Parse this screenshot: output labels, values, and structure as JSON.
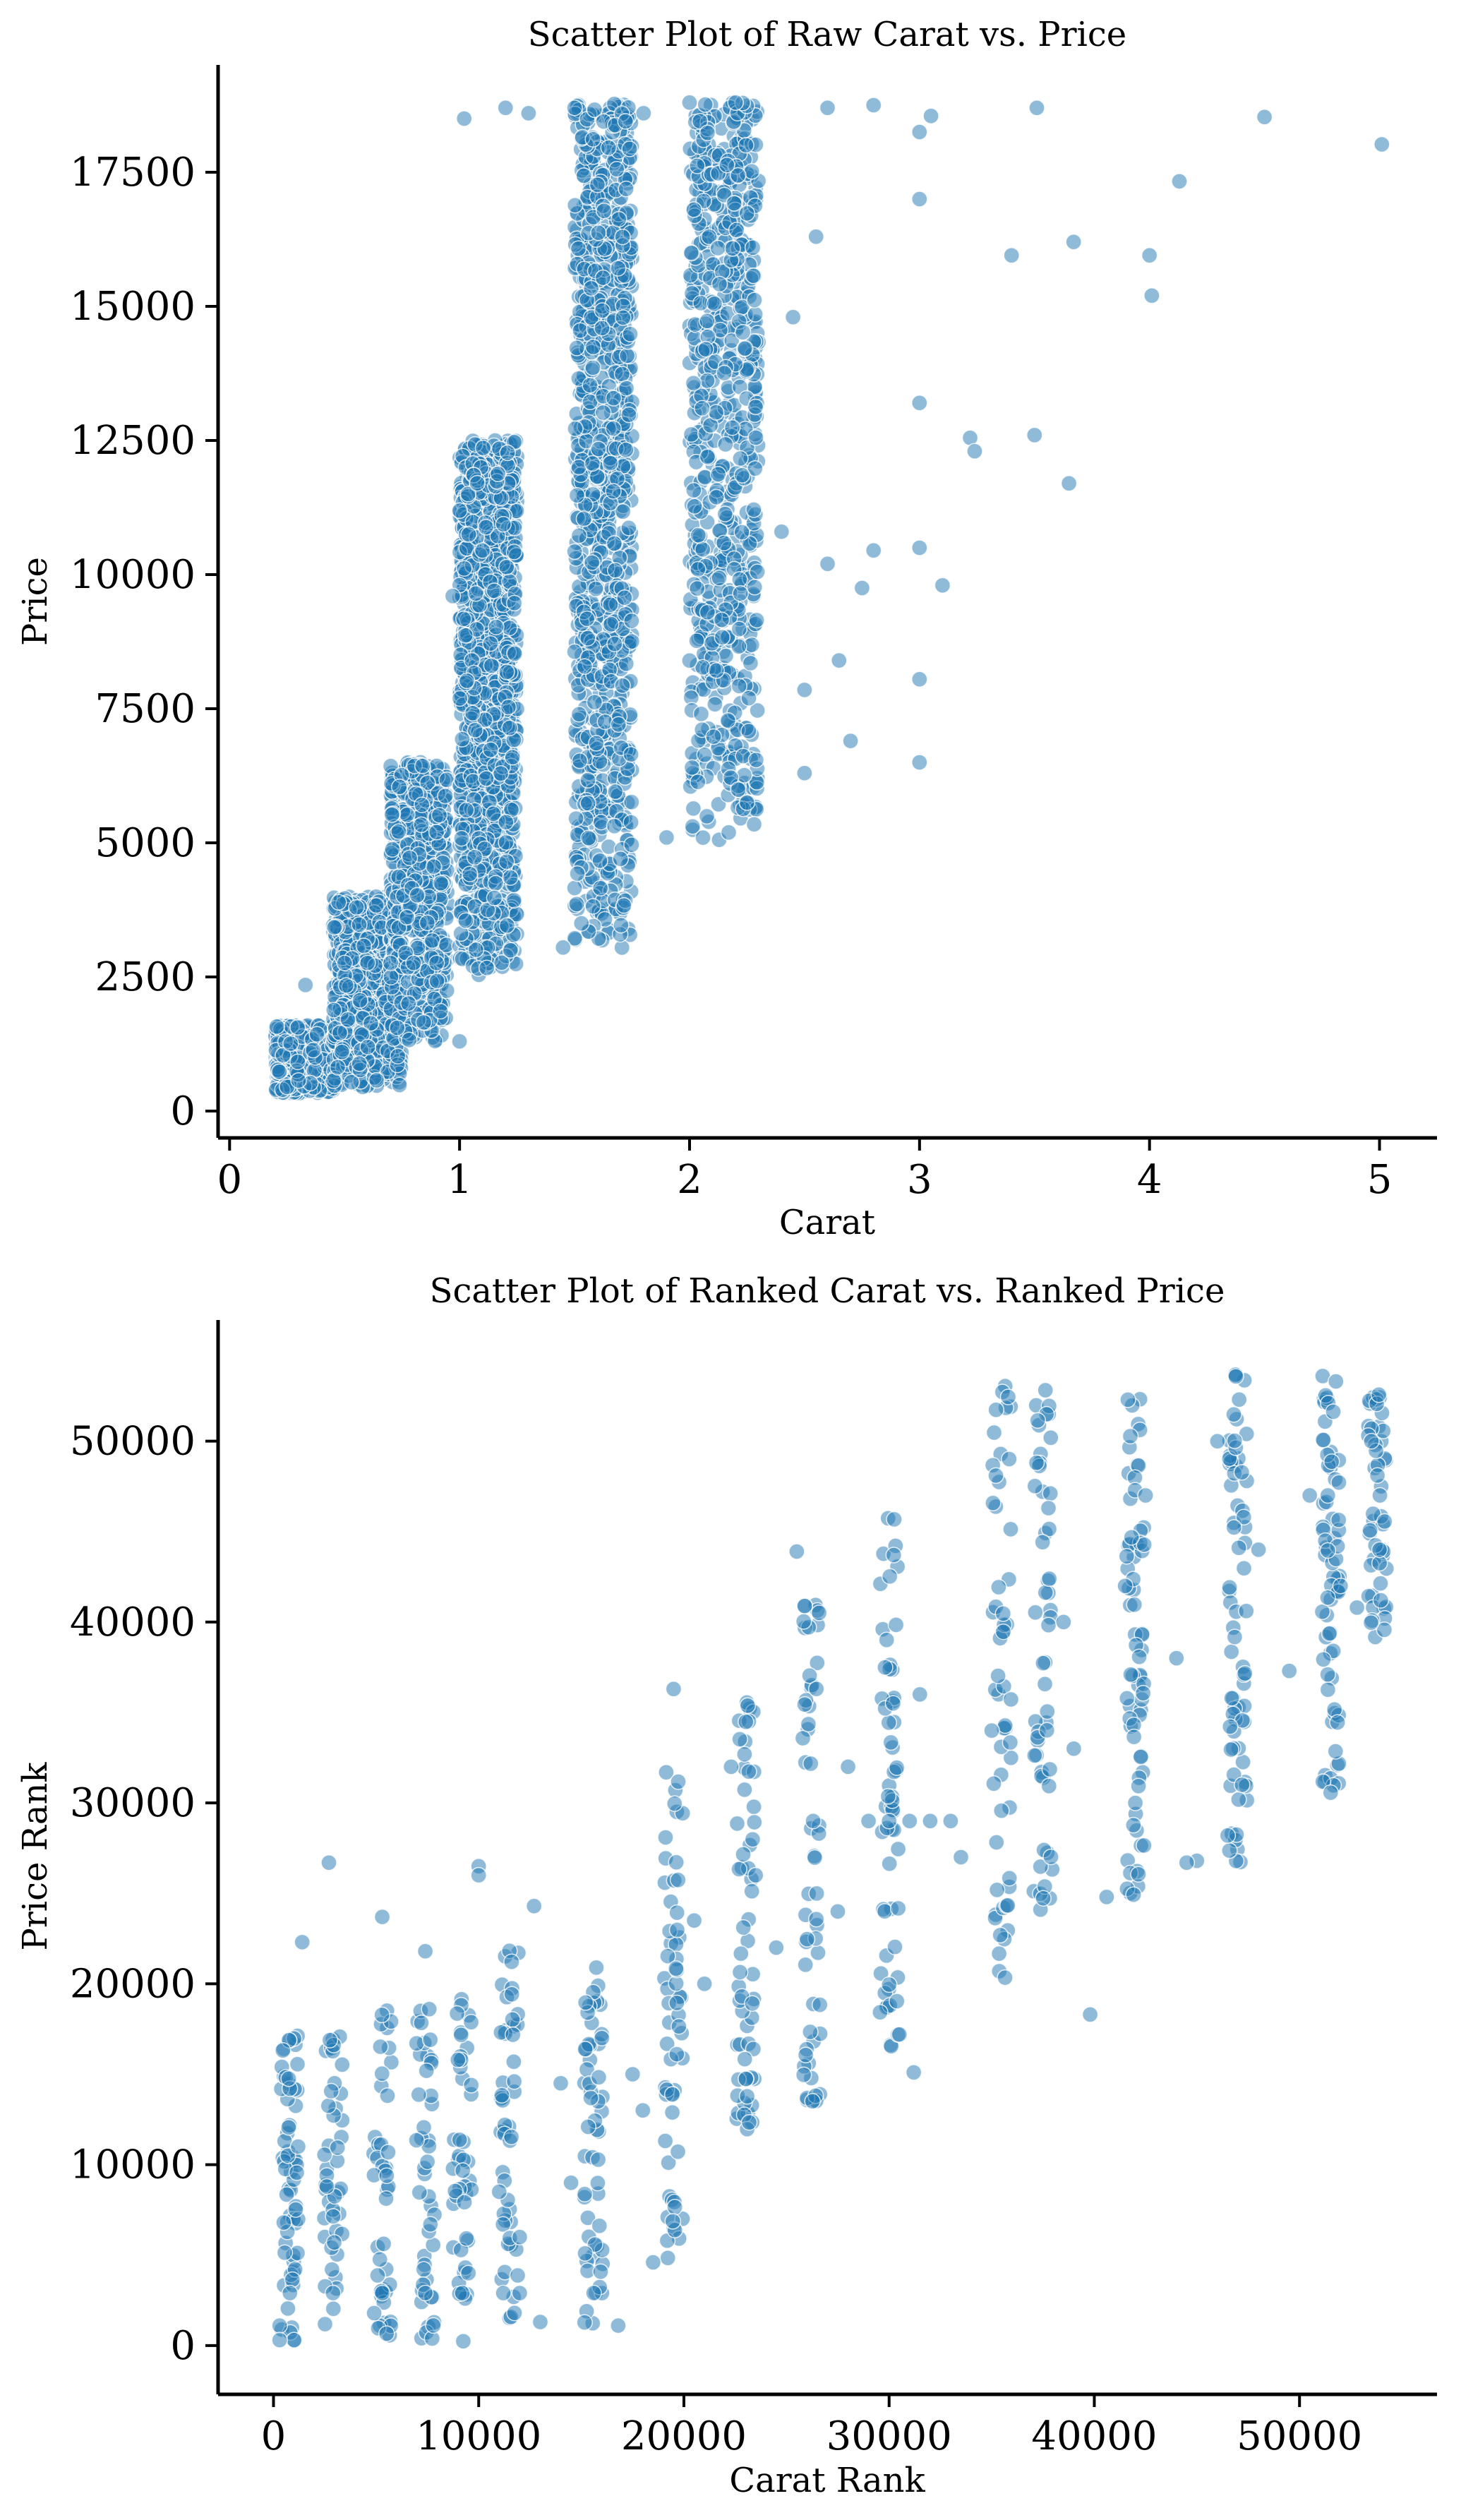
{
  "colors": {
    "marker": "#1f77b4",
    "edge": "#ffffff"
  },
  "chart_data": [
    {
      "type": "scatter",
      "title": "Scatter Plot of Raw Carat vs. Price",
      "xlabel": "Carat",
      "ylabel": "Price",
      "xlim": [
        -0.05,
        5.25
      ],
      "ylim": [
        -500,
        19500
      ],
      "xticks": [
        0,
        1,
        2,
        3,
        4,
        5
      ],
      "yticks": [
        0,
        2500,
        5000,
        7500,
        10000,
        12500,
        15000,
        17500
      ],
      "grid": false,
      "legend": "none",
      "marker_alpha": 0.5,
      "clusters": [
        {
          "x_min": 0.2,
          "x_max": 0.45,
          "y_min": 330,
          "y_max": 1600,
          "n": 700
        },
        {
          "x_min": 0.45,
          "x_max": 0.75,
          "y_min": 450,
          "y_max": 4000,
          "n": 800
        },
        {
          "x_min": 0.7,
          "x_max": 0.95,
          "y_min": 1300,
          "y_max": 6500,
          "n": 600
        },
        {
          "x_min": 1.0,
          "x_max": 1.25,
          "y_min": 2500,
          "y_max": 12500,
          "n": 1300
        },
        {
          "x_min": 1.5,
          "x_max": 1.75,
          "y_min": 3000,
          "y_max": 18800,
          "n": 1000
        },
        {
          "x_min": 2.0,
          "x_max": 2.3,
          "y_min": 5000,
          "y_max": 18800,
          "n": 700
        }
      ],
      "points": [
        [
          0.25,
          450
        ],
        [
          0.3,
          570
        ],
        [
          0.33,
          2350
        ],
        [
          0.5,
          2760
        ],
        [
          0.6,
          2760
        ],
        [
          0.7,
          2760
        ],
        [
          0.8,
          2760
        ],
        [
          0.9,
          2760
        ],
        [
          0.97,
          9600
        ],
        [
          1.02,
          18500
        ],
        [
          1.2,
          18700
        ],
        [
          1.3,
          18600
        ],
        [
          1.5,
          18700
        ],
        [
          1.8,
          18600
        ],
        [
          2.0,
          18800
        ],
        [
          2.2,
          18800
        ],
        [
          2.6,
          18700
        ],
        [
          2.8,
          18750
        ],
        [
          3.0,
          18250
        ],
        [
          3.0,
          17000
        ],
        [
          3.0,
          13200
        ],
        [
          3.0,
          10500
        ],
        [
          3.0,
          8050
        ],
        [
          3.0,
          6500
        ],
        [
          3.05,
          18550
        ],
        [
          3.1,
          9800
        ],
        [
          3.22,
          12550
        ],
        [
          3.24,
          12300
        ],
        [
          3.4,
          15950
        ],
        [
          3.5,
          12600
        ],
        [
          3.51,
          18700
        ],
        [
          3.65,
          11700
        ],
        [
          3.67,
          16200
        ],
        [
          4.0,
          15950
        ],
        [
          4.01,
          15200
        ],
        [
          4.13,
          17330
        ],
        [
          4.5,
          18530
        ],
        [
          5.01,
          18020
        ],
        [
          2.5,
          6300
        ],
        [
          2.7,
          6900
        ],
        [
          2.65,
          8400
        ],
        [
          2.5,
          7850
        ],
        [
          2.6,
          10200
        ],
        [
          1.9,
          5100
        ],
        [
          2.25,
          5750
        ],
        [
          1.7,
          4700
        ],
        [
          1.45,
          3050
        ],
        [
          1.53,
          3500
        ],
        [
          1.0,
          1300
        ],
        [
          2.75,
          9750
        ],
        [
          2.8,
          10450
        ],
        [
          2.4,
          10800
        ],
        [
          2.45,
          14800
        ],
        [
          2.55,
          16300
        ]
      ]
    },
    {
      "type": "scatter",
      "title": "Scatter Plot of Ranked Carat vs. Ranked Price",
      "xlabel": "Carat Rank",
      "ylabel": "Price Rank",
      "xlim": [
        -2700,
        56700
      ],
      "ylim": [
        -2700,
        56700
      ],
      "xticks": [
        0,
        10000,
        20000,
        30000,
        40000,
        50000
      ],
      "yticks": [
        0,
        10000,
        20000,
        30000,
        40000,
        50000
      ],
      "grid": false,
      "legend": "none",
      "marker_alpha": 0.5,
      "columns": [
        {
          "x": 800,
          "y_min": 200,
          "y_max": 17500,
          "n": 60
        },
        {
          "x": 2900,
          "y_min": 300,
          "y_max": 17600,
          "n": 45
        },
        {
          "x": 5300,
          "y_min": 300,
          "y_max": 18900,
          "n": 45
        },
        {
          "x": 7400,
          "y_min": 300,
          "y_max": 19100,
          "n": 45
        },
        {
          "x": 9200,
          "y_min": 200,
          "y_max": 19300,
          "n": 45
        },
        {
          "x": 11500,
          "y_min": 1500,
          "y_max": 22000,
          "n": 50
        },
        {
          "x": 15600,
          "y_min": 1000,
          "y_max": 21500,
          "n": 55
        },
        {
          "x": 19500,
          "y_min": 3000,
          "y_max": 32000,
          "n": 60
        },
        {
          "x": 23000,
          "y_min": 11000,
          "y_max": 36000,
          "n": 60
        },
        {
          "x": 26200,
          "y_min": 13500,
          "y_max": 41200,
          "n": 55
        },
        {
          "x": 30000,
          "y_min": 15000,
          "y_max": 46000,
          "n": 60
        },
        {
          "x": 35500,
          "y_min": 20000,
          "y_max": 53200,
          "n": 55
        },
        {
          "x": 37500,
          "y_min": 24000,
          "y_max": 53000,
          "n": 55
        },
        {
          "x": 42000,
          "y_min": 24500,
          "y_max": 54000,
          "n": 70
        },
        {
          "x": 47000,
          "y_min": 26500,
          "y_max": 54000,
          "n": 70
        },
        {
          "x": 51500,
          "y_min": 30500,
          "y_max": 54000,
          "n": 70
        },
        {
          "x": 53800,
          "y_min": 39000,
          "y_max": 54000,
          "n": 50
        }
      ],
      "points": [
        [
          2700,
          26700
        ],
        [
          1400,
          22300
        ],
        [
          5300,
          23700
        ],
        [
          7400,
          21800
        ],
        [
          10000,
          26500
        ],
        [
          10000,
          26000
        ],
        [
          12700,
          24300
        ],
        [
          25500,
          43900
        ],
        [
          39800,
          18300
        ],
        [
          31200,
          15100
        ],
        [
          30500,
          17200
        ],
        [
          26300,
          29000
        ],
        [
          29000,
          29000
        ],
        [
          30000,
          29000
        ],
        [
          31000,
          29000
        ],
        [
          32000,
          29000
        ],
        [
          33000,
          29000
        ],
        [
          19500,
          36300
        ],
        [
          16800,
          1100
        ],
        [
          18500,
          4600
        ],
        [
          13000,
          1300
        ],
        [
          22300,
          32000
        ],
        [
          45000,
          26800
        ],
        [
          47200,
          31000
        ],
        [
          49500,
          37300
        ],
        [
          52800,
          40800
        ],
        [
          44500,
          26700
        ],
        [
          40600,
          24800
        ],
        [
          42000,
          30000
        ],
        [
          46500,
          28200
        ],
        [
          300,
          1100
        ],
        [
          500,
          6800
        ],
        [
          700,
          10500
        ],
        [
          1000,
          300
        ],
        [
          1200,
          11000
        ],
        [
          300,
          300
        ],
        [
          800,
          2900
        ],
        [
          2900,
          2900
        ],
        [
          5300,
          2900
        ],
        [
          7400,
          2900
        ],
        [
          9200,
          2900
        ],
        [
          11200,
          2900
        ],
        [
          12000,
          2900
        ],
        [
          15600,
          2900
        ],
        [
          11000,
          8500
        ],
        [
          14000,
          14500
        ],
        [
          16000,
          17000
        ],
        [
          18000,
          13000
        ],
        [
          21000,
          20000
        ],
        [
          24500,
          22000
        ],
        [
          27500,
          24000
        ],
        [
          33500,
          27000
        ],
        [
          39000,
          33000
        ],
        [
          41500,
          42000
        ],
        [
          44000,
          38000
        ],
        [
          48000,
          44000
        ],
        [
          50500,
          47000
        ],
        [
          53500,
          50000
        ],
        [
          53900,
          44000
        ],
        [
          52000,
          42000
        ],
        [
          46000,
          50000
        ],
        [
          42500,
          47000
        ],
        [
          38500,
          40000
        ],
        [
          35000,
          34000
        ],
        [
          31500,
          36000
        ],
        [
          28000,
          32000
        ],
        [
          23500,
          26000
        ],
        [
          20500,
          23500
        ],
        [
          17500,
          15000
        ],
        [
          14500,
          9000
        ],
        [
          12000,
          6000
        ],
        [
          9500,
          4000
        ]
      ]
    }
  ]
}
